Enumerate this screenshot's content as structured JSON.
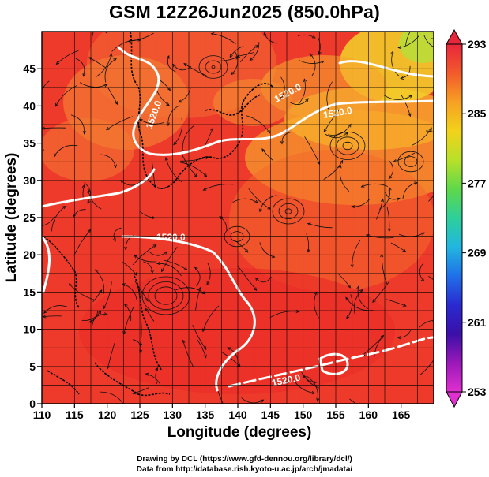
{
  "title": "GSM 12Z26Jun2025 (850.0hPa)",
  "map": {
    "xlabel": "Longitude (degrees)",
    "ylabel": "Latitude  (degrees)",
    "lon_range": [
      110,
      170
    ],
    "lat_range": [
      0,
      50
    ],
    "x_ticks": [
      "110",
      "115",
      "120",
      "125",
      "130",
      "135",
      "140",
      "145",
      "150",
      "155",
      "160",
      "165"
    ],
    "y_ticks": [
      "0",
      "5",
      "10",
      "15",
      "20",
      "25",
      "30",
      "35",
      "40",
      "45"
    ],
    "grid": true,
    "colorbar": {
      "ticks": [
        "293",
        "285",
        "277",
        "269",
        "261",
        "253"
      ],
      "colors": [
        "#e8263c",
        "#f25a2c",
        "#f7a024",
        "#f2d21a",
        "#b8e02a",
        "#5fd84a",
        "#2ecf9a",
        "#22b6e0",
        "#2070e8",
        "#2a2ad0",
        "#3a10a8",
        "#9a18b8",
        "#e030d0"
      ]
    },
    "contours": [
      {
        "label": "1520.0"
      },
      {
        "label": "1520.0"
      },
      {
        "label": "1520.0"
      },
      {
        "label": "1520.0"
      },
      {
        "label": "1520.0"
      }
    ]
  },
  "credits": {
    "line1": "Drawing by DCL (https://www.gfd-dennou.org/library/dcl/)",
    "line2": "Data from http://database.rish.kyoto-u.ac.jp/arch/jmadata/"
  }
}
